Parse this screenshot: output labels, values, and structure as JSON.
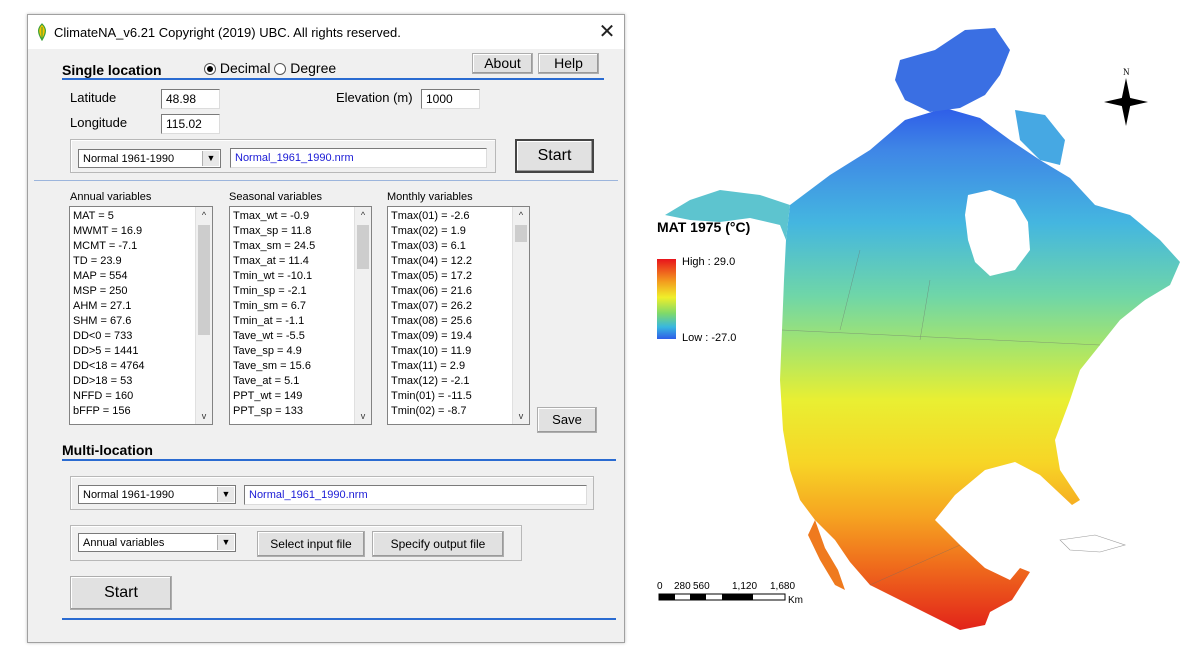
{
  "window": {
    "title": "ClimateNA_v6.21  Copyright (2019) UBC. All rights reserved.",
    "close_glyph": "✕"
  },
  "single": {
    "title": "Single location",
    "radio_decimal": "Decimal",
    "radio_degree": "Degree",
    "about": "About",
    "help": "Help",
    "latitude_label": "Latitude",
    "latitude_value": "48.98",
    "longitude_label": "Longitude",
    "longitude_value": "115.02",
    "elevation_label": "Elevation (m)",
    "elevation_value": "1000",
    "period_select": "Normal 1961-1990",
    "file_value": "Normal_1961_1990.nrm",
    "start": "Start",
    "save": "Save"
  },
  "lists": {
    "annual_header": "Annual variables",
    "seasonal_header": "Seasonal variables",
    "monthly_header": "Monthly variables",
    "annual": [
      "MAT = 5",
      "MWMT = 16.9",
      "MCMT = -7.1",
      "TD = 23.9",
      "MAP = 554",
      "MSP = 250",
      "AHM = 27.1",
      "SHM = 67.6",
      "DD<0 = 733",
      "DD>5 = 1441",
      "DD<18 = 4764",
      "DD>18 = 53",
      "NFFD = 160",
      "bFFP = 156"
    ],
    "seasonal": [
      "Tmax_wt = -0.9",
      "Tmax_sp = 11.8",
      "Tmax_sm = 24.5",
      "Tmax_at = 11.4",
      "Tmin_wt = -10.1",
      "Tmin_sp = -2.1",
      "Tmin_sm = 6.7",
      "Tmin_at = -1.1",
      "Tave_wt = -5.5",
      "Tave_sp = 4.9",
      "Tave_sm = 15.6",
      "Tave_at = 5.1",
      "PPT_wt = 149",
      "PPT_sp = 133"
    ],
    "monthly": [
      "Tmax(01) = -2.6",
      "Tmax(02) = 1.9",
      "Tmax(03) = 6.1",
      "Tmax(04) = 12.2",
      "Tmax(05) = 17.2",
      "Tmax(06) = 21.6",
      "Tmax(07) = 26.2",
      "Tmax(08) = 25.6",
      "Tmax(09) = 19.4",
      "Tmax(10) = 11.9",
      "Tmax(11) = 2.9",
      "Tmax(12) = -2.1",
      "Tmin(01) = -11.5",
      "Tmin(02) = -8.7"
    ]
  },
  "multi": {
    "title": "Multi-location",
    "period_select": "Normal 1961-1990",
    "file_value": "Normal_1961_1990.nrm",
    "vars_select": "Annual variables",
    "select_input": "Select input file",
    "specify_output": "Specify output file",
    "start": "Start"
  },
  "map": {
    "title": "MAT 1975 (°C)",
    "legend_high": "High : 29.0",
    "legend_low": "Low : -27.0",
    "north": "N",
    "scale_labels": [
      "0",
      "280",
      "560",
      "1,120",
      "1,680"
    ],
    "scale_unit": "Km",
    "colors": {
      "hot": "#e8141c",
      "warm": "#f0ef2a",
      "mild": "#7fd96a",
      "cool": "#38b7e0",
      "cold": "#2e5de8"
    }
  }
}
